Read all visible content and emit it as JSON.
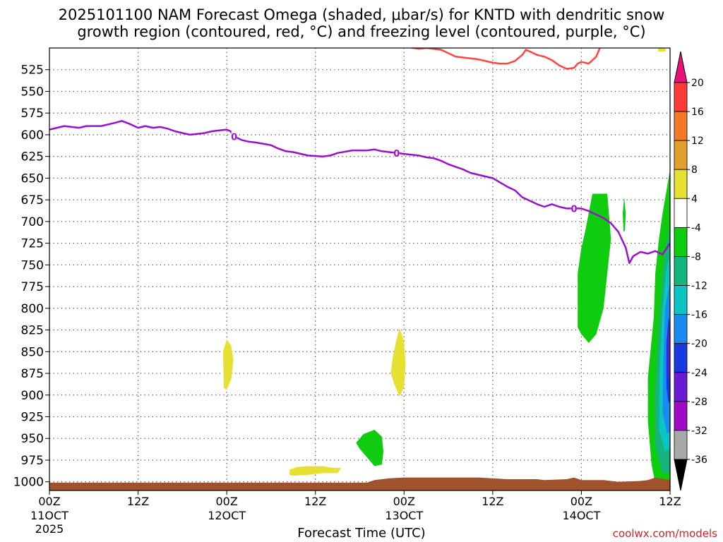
{
  "title_line1": "2025101100 NAM Forecast Omega (shaded, μbar/s) for KNTD with dendritic snow",
  "title_line2": "growth region (contoured, red, °C) and freezing level (contoured, purple, °C)",
  "xlabel": "Forecast Time (UTC)",
  "credit": "coolwx.com/models",
  "chart_data": {
    "type": "time-height cross-section",
    "x_unit": "forecast hours from 2025-10-11 00Z",
    "x_range": [
      0,
      84
    ],
    "y_unit": "hPa",
    "y_range": [
      500,
      1010
    ],
    "y_ticks": [
      525,
      550,
      575,
      600,
      625,
      650,
      675,
      700,
      725,
      750,
      775,
      800,
      825,
      850,
      875,
      900,
      925,
      950,
      975,
      1000
    ],
    "x_ticks": [
      {
        "hour": 0,
        "label": "00Z",
        "sub": "11OCT",
        "sub2": "2025"
      },
      {
        "hour": 12,
        "label": "12Z",
        "sub": "",
        "sub2": ""
      },
      {
        "hour": 24,
        "label": "00Z",
        "sub": "12OCT",
        "sub2": ""
      },
      {
        "hour": 36,
        "label": "12Z",
        "sub": "",
        "sub2": ""
      },
      {
        "hour": 48,
        "label": "00Z",
        "sub": "13OCT",
        "sub2": ""
      },
      {
        "hour": 60,
        "label": "12Z",
        "sub": "",
        "sub2": ""
      },
      {
        "hour": 72,
        "label": "00Z",
        "sub": "14OCT",
        "sub2": ""
      },
      {
        "hour": 84,
        "label": "12Z",
        "sub": "",
        "sub2": ""
      }
    ],
    "colorbar": {
      "levels": [
        20,
        16,
        12,
        8,
        4,
        -4,
        -8,
        -12,
        -16,
        -20,
        -24,
        -28,
        -32,
        -36
      ],
      "colors": [
        "#ff3a3a",
        "#f37828",
        "#e2a12c",
        "#e6e033",
        "#ffffff",
        "#0fcc0f",
        "#14b47c",
        "#0cc4c4",
        "#1a8cf0",
        "#1838e0",
        "#6a1ad4",
        "#a00bc6",
        "#a8a8a8"
      ],
      "top_arrow_color": "#e8117a",
      "bottom_arrow_color": "#000000"
    },
    "freezing_level": {
      "contour_label": "0",
      "color": "#9a10cc",
      "points": [
        [
          0,
          594
        ],
        [
          2,
          590
        ],
        [
          4,
          592
        ],
        [
          5,
          590
        ],
        [
          7,
          590
        ],
        [
          8,
          588
        ],
        [
          9,
          586
        ],
        [
          9.8,
          584
        ],
        [
          11,
          588
        ],
        [
          12,
          592
        ],
        [
          13,
          590
        ],
        [
          14,
          592
        ],
        [
          15,
          591
        ],
        [
          16,
          593
        ],
        [
          17,
          596
        ],
        [
          18,
          598
        ],
        [
          19,
          600
        ],
        [
          20,
          599
        ],
        [
          21,
          598
        ],
        [
          22,
          596
        ],
        [
          23,
          595
        ],
        [
          24,
          594
        ],
        [
          24.5,
          596
        ],
        [
          25,
          602
        ],
        [
          26,
          606
        ],
        [
          27,
          608
        ],
        [
          28,
          609
        ],
        [
          30,
          612
        ],
        [
          31,
          616
        ],
        [
          32,
          619
        ],
        [
          33,
          620
        ],
        [
          35,
          624
        ],
        [
          37,
          625
        ],
        [
          38,
          624
        ],
        [
          39,
          621
        ],
        [
          41,
          618
        ],
        [
          43,
          618
        ],
        [
          44,
          617
        ],
        [
          45,
          619
        ],
        [
          46,
          620
        ],
        [
          48,
          622
        ],
        [
          49,
          623
        ],
        [
          50,
          624
        ],
        [
          51,
          626
        ],
        [
          52,
          627
        ],
        [
          53,
          630
        ],
        [
          54,
          634
        ],
        [
          55,
          637
        ],
        [
          56,
          640
        ],
        [
          57,
          644
        ],
        [
          58,
          646
        ],
        [
          59,
          648
        ],
        [
          60,
          650
        ],
        [
          61,
          655
        ],
        [
          62,
          660
        ],
        [
          63,
          664
        ],
        [
          64,
          672
        ],
        [
          65,
          676
        ],
        [
          66,
          680
        ],
        [
          67,
          683
        ],
        [
          68,
          680
        ],
        [
          69,
          683
        ],
        [
          70,
          685
        ],
        [
          71,
          685
        ],
        [
          72,
          685
        ],
        [
          73,
          688
        ],
        [
          74,
          692
        ],
        [
          75,
          696
        ],
        [
          76,
          702
        ],
        [
          77,
          712
        ],
        [
          78,
          730
        ],
        [
          78.5,
          748
        ],
        [
          79,
          740
        ],
        [
          80,
          735
        ],
        [
          81,
          737
        ],
        [
          82,
          734
        ],
        [
          83,
          738
        ],
        [
          84,
          725
        ]
      ]
    },
    "snow_growth_contour": {
      "color": "#ff4545",
      "points": [
        [
          48.5,
          499
        ],
        [
          50,
          501
        ],
        [
          51,
          500
        ],
        [
          53,
          502
        ],
        [
          54,
          506
        ],
        [
          55,
          510
        ],
        [
          56,
          511
        ],
        [
          57,
          512
        ],
        [
          58,
          513
        ],
        [
          59,
          515
        ],
        [
          60,
          517
        ],
        [
          61,
          518
        ],
        [
          62,
          518
        ],
        [
          63,
          515
        ],
        [
          64,
          508
        ],
        [
          64.5,
          502
        ],
        [
          65,
          504
        ],
        [
          66,
          508
        ],
        [
          67,
          510
        ],
        [
          68,
          514
        ],
        [
          69,
          520
        ],
        [
          70,
          524
        ],
        [
          71,
          523
        ],
        [
          71.5,
          518
        ],
        [
          72,
          516
        ],
        [
          73,
          518
        ],
        [
          74,
          510
        ],
        [
          74.5,
          500
        ]
      ]
    },
    "omega_regions": [
      {
        "class": -4,
        "color": "#0fcc0f",
        "desc": "lower-tropospheric ascent near 00Z 14 Oct",
        "points": [
          [
            71.5,
            822
          ],
          [
            71.5,
            760
          ],
          [
            72,
            730
          ],
          [
            72.5,
            712
          ],
          [
            73,
            690
          ],
          [
            73.5,
            668
          ],
          [
            75.5,
            668
          ],
          [
            76,
            720
          ],
          [
            75.5,
            760
          ],
          [
            75,
            800
          ],
          [
            74,
            830
          ],
          [
            73,
            840
          ],
          [
            72,
            830
          ]
        ]
      },
      {
        "class": -4,
        "color": "#0fcc0f",
        "desc": "thin streak",
        "points": [
          [
            77.6,
            690
          ],
          [
            77.8,
            672
          ],
          [
            78,
            690
          ],
          [
            77.9,
            710
          ],
          [
            77.7,
            712
          ]
        ]
      },
      {
        "class": -4,
        "color": "#0fcc0f",
        "desc": "deep ascent at end of period",
        "points": [
          [
            81.5,
            980
          ],
          [
            81,
            930
          ],
          [
            81,
            880
          ],
          [
            81.8,
            810
          ],
          [
            82,
            760
          ],
          [
            82.5,
            720
          ],
          [
            83,
            690
          ],
          [
            83.5,
            665
          ],
          [
            84,
            640
          ],
          [
            84.3,
            640
          ],
          [
            84.3,
            1002
          ],
          [
            82,
            1002
          ]
        ]
      },
      {
        "class": -8,
        "color": "#14b47c",
        "points": [
          [
            82,
            960
          ],
          [
            82,
            900
          ],
          [
            82.5,
            820
          ],
          [
            83,
            760
          ],
          [
            83.6,
            720
          ],
          [
            84.3,
            700
          ],
          [
            84.3,
            990
          ],
          [
            83,
            990
          ]
        ]
      },
      {
        "class": -12,
        "color": "#0cc4c4",
        "points": [
          [
            82.5,
            940
          ],
          [
            82.6,
            870
          ],
          [
            83,
            800
          ],
          [
            83.6,
            750
          ],
          [
            84.3,
            735
          ],
          [
            84.3,
            960
          ],
          [
            83.3,
            965
          ]
        ]
      },
      {
        "class": -16,
        "color": "#1a8cf0",
        "points": [
          [
            83,
            920
          ],
          [
            83.1,
            860
          ],
          [
            83.3,
            800
          ],
          [
            84,
            770
          ],
          [
            84.3,
            780
          ],
          [
            84.3,
            940
          ],
          [
            83.6,
            945
          ]
        ]
      },
      {
        "class": -20,
        "color": "#1838e0",
        "points": [
          [
            83.5,
            890
          ],
          [
            83.5,
            840
          ],
          [
            83.8,
            810
          ],
          [
            84.2,
            830
          ],
          [
            84.2,
            900
          ],
          [
            83.8,
            910
          ]
        ]
      },
      {
        "class": -24,
        "color": "#6a1ad4",
        "points": [
          [
            83.7,
            870
          ],
          [
            83.7,
            830
          ],
          [
            83.95,
            820
          ],
          [
            84.1,
            840
          ],
          [
            84.1,
            875
          ],
          [
            83.9,
            885
          ]
        ]
      },
      {
        "class": 4,
        "color": "#e6e033",
        "desc": "weak descent",
        "points": [
          [
            23.6,
            892
          ],
          [
            23.5,
            850
          ],
          [
            24,
            836
          ],
          [
            24.6,
            843
          ],
          [
            24.9,
            860
          ],
          [
            24.6,
            882
          ],
          [
            24,
            894
          ]
        ]
      },
      {
        "class": 4,
        "color": "#e6e033",
        "points": [
          [
            46.2,
            875
          ],
          [
            46.5,
            855
          ],
          [
            47,
            835
          ],
          [
            47.4,
            823
          ],
          [
            48,
            838
          ],
          [
            48.2,
            865
          ],
          [
            48,
            890
          ],
          [
            47.4,
            902
          ],
          [
            46.8,
            890
          ]
        ]
      },
      {
        "class": 4,
        "color": "#e6e033",
        "points": [
          [
            32.5,
            986
          ],
          [
            33.5,
            983
          ],
          [
            35,
            982
          ],
          [
            37,
            982
          ],
          [
            38.5,
            984
          ],
          [
            39.5,
            984
          ],
          [
            39,
            990
          ],
          [
            37,
            990
          ],
          [
            35,
            992
          ],
          [
            33,
            993
          ],
          [
            32.5,
            992
          ]
        ]
      },
      {
        "class": -4,
        "color": "#0fcc0f",
        "points": [
          [
            41.5,
            955
          ],
          [
            42.5,
            945
          ],
          [
            44,
            940
          ],
          [
            45,
            948
          ],
          [
            45.2,
            965
          ],
          [
            45,
            980
          ],
          [
            44,
            982
          ],
          [
            43,
            972
          ],
          [
            42,
            962
          ]
        ]
      },
      {
        "class": 4,
        "color": "#e6e033",
        "points": [
          [
            82.4,
            499
          ],
          [
            83.4,
            499
          ],
          [
            83.4,
            504
          ],
          [
            82.4,
            504
          ]
        ]
      }
    ],
    "terrain": {
      "color": "#a0522d",
      "top_points": [
        [
          0,
          1001
        ],
        [
          43,
          1001
        ],
        [
          44,
          998
        ],
        [
          46,
          996
        ],
        [
          48,
          995
        ],
        [
          50,
          995
        ],
        [
          52,
          995
        ],
        [
          56,
          995
        ],
        [
          58,
          995
        ],
        [
          60,
          996
        ],
        [
          62,
          997
        ],
        [
          66,
          997
        ],
        [
          67,
          998
        ],
        [
          70,
          997
        ],
        [
          71,
          995
        ],
        [
          72,
          998
        ],
        [
          75,
          998
        ],
        [
          77,
          1000
        ],
        [
          80,
          999
        ],
        [
          81,
          998
        ],
        [
          82,
          995
        ],
        [
          84,
          998
        ]
      ]
    }
  }
}
